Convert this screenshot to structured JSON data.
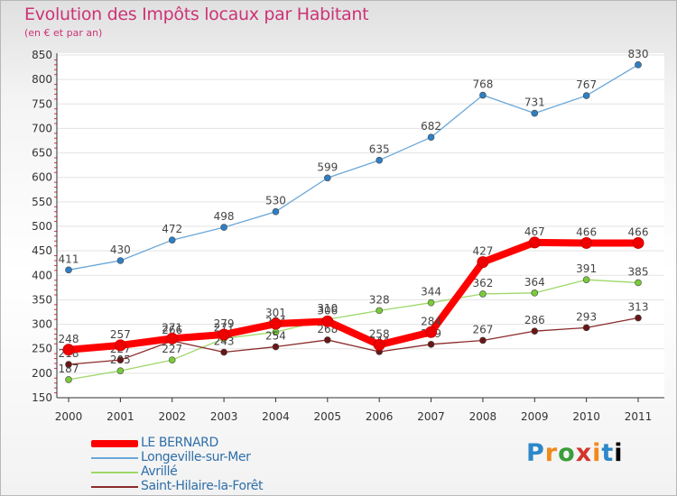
{
  "header": {
    "title": "Evolution des Impôts locaux par Habitant",
    "subtitle": "(en € et par an)"
  },
  "logo": {
    "text": "Proxiti"
  },
  "chart_data": {
    "type": "line",
    "title": "Evolution des Impôts locaux par Habitant",
    "subtitle": "(en € et par an)",
    "xlabel": "",
    "ylabel": "",
    "ylim": [
      150,
      850
    ],
    "yticks": [
      150,
      200,
      250,
      300,
      350,
      400,
      450,
      500,
      550,
      600,
      650,
      700,
      750,
      800,
      850
    ],
    "grid": "horizontal",
    "legend": "bottom-left",
    "categories": [
      "2000",
      "2001",
      "2002",
      "2003",
      "2004",
      "2005",
      "2006",
      "2007",
      "2008",
      "2009",
      "2010",
      "2011"
    ],
    "series": [
      {
        "name": "Longeville-sur-Mer",
        "color": "#6aa7d8",
        "marker": "#2e7fc4",
        "values": [
          411,
          430,
          472,
          498,
          530,
          599,
          635,
          682,
          768,
          731,
          767,
          830
        ],
        "labels": [
          "411",
          "430",
          "472",
          "498",
          "530",
          "599",
          "635",
          "682",
          "768",
          "731",
          "767",
          "830"
        ]
      },
      {
        "name": "Avrillé",
        "color": "#9ed86a",
        "marker": "#7acb3a",
        "values": [
          187,
          205,
          227,
          271,
          284,
          310,
          328,
          344,
          362,
          364,
          391,
          385
        ],
        "labels": [
          "187",
          "205",
          "227",
          "271",
          "284",
          "310",
          "328",
          "344",
          "362",
          "364",
          "391",
          "385"
        ]
      },
      {
        "name": "Saint-Hilaire-la-Forêt",
        "color": "#8a2a2a",
        "marker": "#6a1616",
        "values": [
          218,
          227,
          266,
          243,
          254,
          268,
          244,
          259,
          267,
          286,
          293,
          313
        ],
        "labels": [
          "218",
          "227",
          "266",
          "243",
          "254",
          "268",
          "244",
          "259",
          "267",
          "286",
          "293",
          "313"
        ]
      },
      {
        "name": "LE BERNARD",
        "color": "#ff0000",
        "marker": "#ee0000",
        "values": [
          248,
          257,
          271,
          279,
          301,
          306,
          258,
          284,
          427,
          467,
          466,
          466
        ],
        "labels": [
          "248",
          "257",
          "271",
          "279",
          "301",
          "306",
          "258",
          "284",
          "427",
          "467",
          "466",
          "466"
        ]
      }
    ],
    "legend_order": [
      "LE BERNARD",
      "Longeville-sur-Mer",
      "Avrillé",
      "Saint-Hilaire-la-Forêt"
    ]
  }
}
